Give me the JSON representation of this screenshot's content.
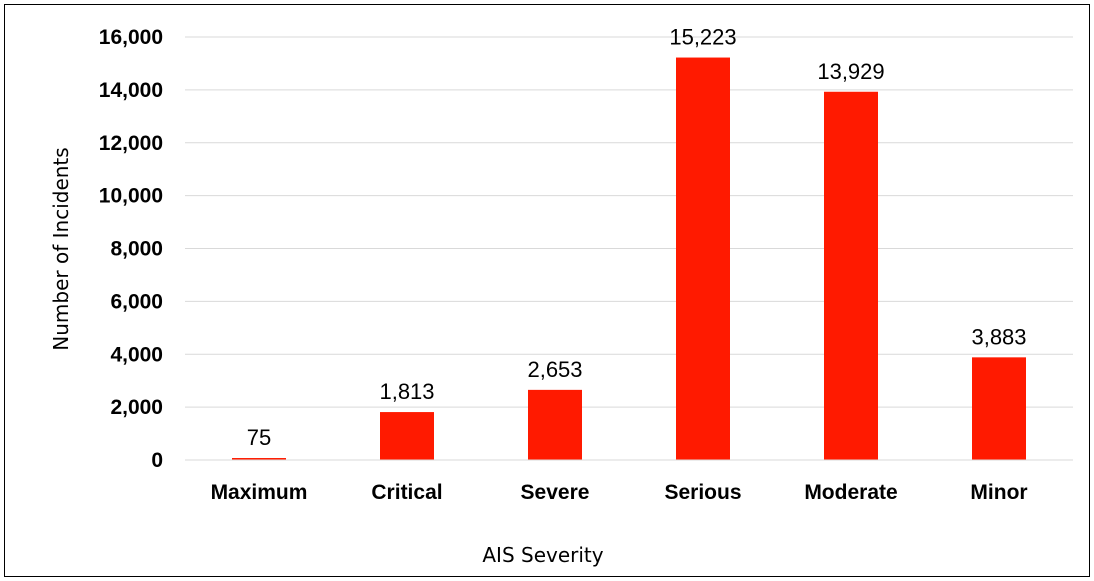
{
  "chart_data": {
    "type": "bar",
    "categories": [
      "Maximum",
      "Critical",
      "Severe",
      "Serious",
      "Moderate",
      "Minor"
    ],
    "values": [
      75,
      1813,
      2653,
      15223,
      13929,
      3883
    ],
    "value_labels": [
      "75",
      "1,813",
      "2,653",
      "15,223",
      "13,929",
      "3,883"
    ],
    "xlabel": "AIS Severity",
    "ylabel": "Number of Incidents",
    "ylim": [
      0,
      16000
    ],
    "yticks": [
      0,
      2000,
      4000,
      6000,
      8000,
      10000,
      12000,
      14000,
      16000
    ],
    "ytick_labels": [
      "0",
      "2,000",
      "4,000",
      "6,000",
      "8,000",
      "10,000",
      "12,000",
      "14,000",
      "16,000"
    ],
    "grid": true,
    "bar_color": "#ff1a00",
    "grid_color": "#d9d9d9"
  }
}
